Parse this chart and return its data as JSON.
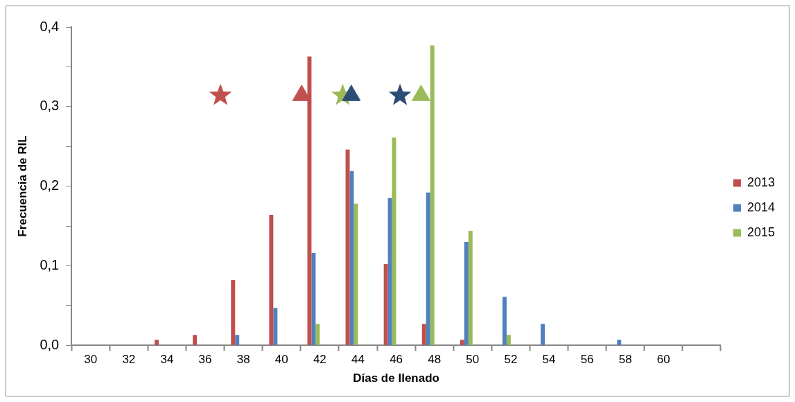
{
  "chart_data": {
    "type": "bar",
    "xlabel": "Días de llenado",
    "ylabel": "Frecuencia de RIL",
    "x": [
      30,
      32,
      34,
      36,
      38,
      40,
      42,
      44,
      46,
      48,
      50,
      52,
      54,
      56,
      58,
      60
    ],
    "xlim": [
      29,
      63
    ],
    "xticks": [
      {
        "value": 29,
        "label": null
      },
      30,
      {
        "value": 31,
        "label": null
      },
      32,
      {
        "value": 33,
        "label": null
      },
      34,
      {
        "value": 35,
        "label": null
      },
      36,
      {
        "value": 37,
        "label": null
      },
      38,
      {
        "value": 39,
        "label": null
      },
      40,
      {
        "value": 41,
        "label": null
      },
      42,
      {
        "value": 43,
        "label": null
      },
      44,
      {
        "value": 45,
        "label": null
      },
      46,
      {
        "value": 47,
        "label": null
      },
      48,
      {
        "value": 49,
        "label": null
      },
      50,
      {
        "value": 51,
        "label": null
      },
      52,
      {
        "value": 53,
        "label": null
      },
      54,
      {
        "value": 55,
        "label": null
      },
      56,
      {
        "value": 57,
        "label": null
      },
      58,
      {
        "value": 59,
        "label": null
      },
      60,
      {
        "value": 61,
        "label": null
      },
      {
        "value": 63,
        "label": null
      }
    ],
    "ylim": [
      0,
      0.4
    ],
    "yticks": [
      {
        "value": 0,
        "label": "0,0"
      },
      {
        "value": 0.05,
        "label": null
      },
      {
        "value": 0.1,
        "label": "0,1"
      },
      {
        "value": 0.15,
        "label": null
      },
      {
        "value": 0.2,
        "label": "0,2"
      },
      {
        "value": 0.25,
        "label": null
      },
      {
        "value": 0.3,
        "label": "0,3"
      },
      {
        "value": 0.35,
        "label": null
      },
      {
        "value": 0.4,
        "label": "0,4"
      }
    ],
    "legend": "right",
    "series": [
      {
        "name": "2013",
        "color": "#c0504d",
        "values": [
          0,
          0,
          0.007,
          0.013,
          0.082,
          0.164,
          0.363,
          0.246,
          0.102,
          0.027,
          0.007,
          0,
          0,
          0,
          0,
          0
        ]
      },
      {
        "name": "2014",
        "color": "#4f81bd",
        "values": [
          0,
          0,
          0,
          0,
          0.013,
          0.047,
          0.116,
          0.219,
          0.185,
          0.192,
          0.13,
          0.061,
          0.027,
          0,
          0.007,
          0
        ]
      },
      {
        "name": "2015",
        "color": "#9bbb59",
        "values": [
          0,
          0,
          0,
          0,
          0,
          0,
          0.027,
          0.178,
          0.261,
          0.377,
          0.144,
          0.013,
          0,
          0,
          0,
          0
        ]
      },
      {
        "type": "scatter",
        "marker": "star",
        "color": "#c0504d",
        "x": [
          36.8
        ],
        "values": [
          0.314
        ]
      },
      {
        "type": "scatter",
        "marker": "triangle",
        "color": "#c0504d",
        "x": [
          41.05
        ],
        "values": [
          0.314
        ]
      },
      {
        "type": "scatter",
        "marker": "triangle",
        "color": "#2c4d75",
        "x": [
          43.65
        ],
        "values": [
          0.314
        ]
      },
      {
        "type": "scatter",
        "marker": "star",
        "color": "#9bbb59",
        "x": [
          43.2
        ],
        "values": [
          0.314
        ]
      },
      {
        "type": "scatter",
        "marker": "star",
        "color": "#2c4d75",
        "x": [
          46.2
        ],
        "values": [
          0.314
        ]
      },
      {
        "type": "scatter",
        "marker": "triangle",
        "color": "#9bbb59",
        "x": [
          47.3
        ],
        "values": [
          0.314
        ]
      }
    ]
  }
}
